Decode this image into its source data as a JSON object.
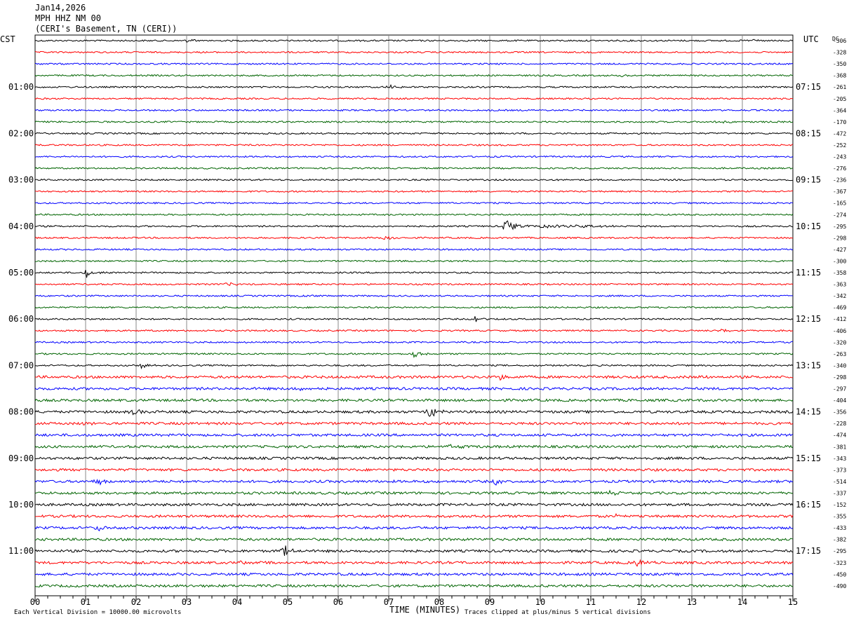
{
  "header": {
    "date": "Jan14,2026",
    "station": "MPH HHZ NM 00",
    "location": "(CERI's Basement, TN (CERI))"
  },
  "chart_data": {
    "type": "line",
    "title": "Jan14,2026",
    "xlabel": "TIME (MINUTES)",
    "ylabel": "",
    "left_axis_title": "CST",
    "right_axis_title": "UTC",
    "dc_title": "DC",
    "x_ticks": [
      "00",
      "01",
      "02",
      "03",
      "04",
      "05",
      "06",
      "07",
      "08",
      "09",
      "10",
      "11",
      "12",
      "13",
      "14",
      "15"
    ],
    "xlim": [
      0,
      15
    ],
    "trace_colors": [
      "#000000",
      "#ff0000",
      "#0000ff",
      "#006400"
    ],
    "row_count": 48,
    "cst_labels": [
      {
        "row": 4,
        "label": "01:00"
      },
      {
        "row": 8,
        "label": "02:00"
      },
      {
        "row": 12,
        "label": "03:00"
      },
      {
        "row": 16,
        "label": "04:00"
      },
      {
        "row": 20,
        "label": "05:00"
      },
      {
        "row": 24,
        "label": "06:00"
      },
      {
        "row": 28,
        "label": "07:00"
      },
      {
        "row": 32,
        "label": "08:00"
      },
      {
        "row": 36,
        "label": "09:00"
      },
      {
        "row": 40,
        "label": "10:00"
      },
      {
        "row": 44,
        "label": "11:00"
      }
    ],
    "utc_labels": [
      {
        "row": 4,
        "label": "07:15"
      },
      {
        "row": 8,
        "label": "08:15"
      },
      {
        "row": 12,
        "label": "09:15"
      },
      {
        "row": 16,
        "label": "10:15"
      },
      {
        "row": 20,
        "label": "11:15"
      },
      {
        "row": 24,
        "label": "12:15"
      },
      {
        "row": 28,
        "label": "13:15"
      },
      {
        "row": 32,
        "label": "14:15"
      },
      {
        "row": 36,
        "label": "15:15"
      },
      {
        "row": 40,
        "label": "16:15"
      },
      {
        "row": 44,
        "label": "17:15"
      }
    ],
    "dc_offsets": [
      "-306",
      "-328",
      "-350",
      "-368",
      "-261",
      "-205",
      "-364",
      "-170",
      "-472",
      "-252",
      "-243",
      "-276",
      "-236",
      "-367",
      "-165",
      "-274",
      "-295",
      "-298",
      "-427",
      "-300",
      "-358",
      "-363",
      "-342",
      "-469",
      "-412",
      "-406",
      "-320",
      "-263",
      "-340",
      "-298",
      "-297",
      "-404",
      "-356",
      "-228",
      "-474",
      "-381",
      "-343",
      "-373",
      "-514",
      "-337",
      "-152",
      "-355",
      "-433",
      "-382",
      "-295",
      "-323",
      "-450",
      "-490"
    ],
    "events": [
      {
        "row": 0,
        "minute": 3.0,
        "amp": 3
      },
      {
        "row": 0,
        "minute": 14.2,
        "amp": 3
      },
      {
        "row": 3,
        "minute": 11.6,
        "amp": 3
      },
      {
        "row": 4,
        "minute": 7.0,
        "amp": 4
      },
      {
        "row": 7,
        "minute": 13.5,
        "amp": 3
      },
      {
        "row": 16,
        "minute": 9.3,
        "amp": 14
      },
      {
        "row": 17,
        "minute": 6.9,
        "amp": 6
      },
      {
        "row": 20,
        "minute": 1.0,
        "amp": 8
      },
      {
        "row": 21,
        "minute": 3.8,
        "amp": 3
      },
      {
        "row": 22,
        "minute": 5.4,
        "amp": 3
      },
      {
        "row": 24,
        "minute": 8.7,
        "amp": 6
      },
      {
        "row": 25,
        "minute": 13.6,
        "amp": 5
      },
      {
        "row": 27,
        "minute": 7.5,
        "amp": 6
      },
      {
        "row": 28,
        "minute": 2.1,
        "amp": 5
      },
      {
        "row": 29,
        "minute": 9.2,
        "amp": 5
      },
      {
        "row": 29,
        "minute": 13.1,
        "amp": 4
      },
      {
        "row": 30,
        "minute": 5.1,
        "amp": 4
      },
      {
        "row": 32,
        "minute": 1.9,
        "amp": 6
      },
      {
        "row": 32,
        "minute": 7.8,
        "amp": 14
      },
      {
        "row": 33,
        "minute": 1.0,
        "amp": 4
      },
      {
        "row": 35,
        "minute": 8.2,
        "amp": 4
      },
      {
        "row": 38,
        "minute": 1.2,
        "amp": 7
      },
      {
        "row": 38,
        "minute": 9.1,
        "amp": 5
      },
      {
        "row": 39,
        "minute": 11.4,
        "amp": 5
      },
      {
        "row": 41,
        "minute": 11.5,
        "amp": 3
      },
      {
        "row": 42,
        "minute": 1.2,
        "amp": 6
      },
      {
        "row": 44,
        "minute": 4.9,
        "amp": 10
      },
      {
        "row": 45,
        "minute": 4.1,
        "amp": 5
      },
      {
        "row": 45,
        "minute": 11.9,
        "amp": 7
      },
      {
        "row": 46,
        "minute": 15.0,
        "amp": 5
      }
    ]
  },
  "footer": {
    "left_note": "Each Vertical Division = 10000.00 microvolts",
    "right_note": "Traces clipped at plus/minus 5 vertical divisions"
  }
}
